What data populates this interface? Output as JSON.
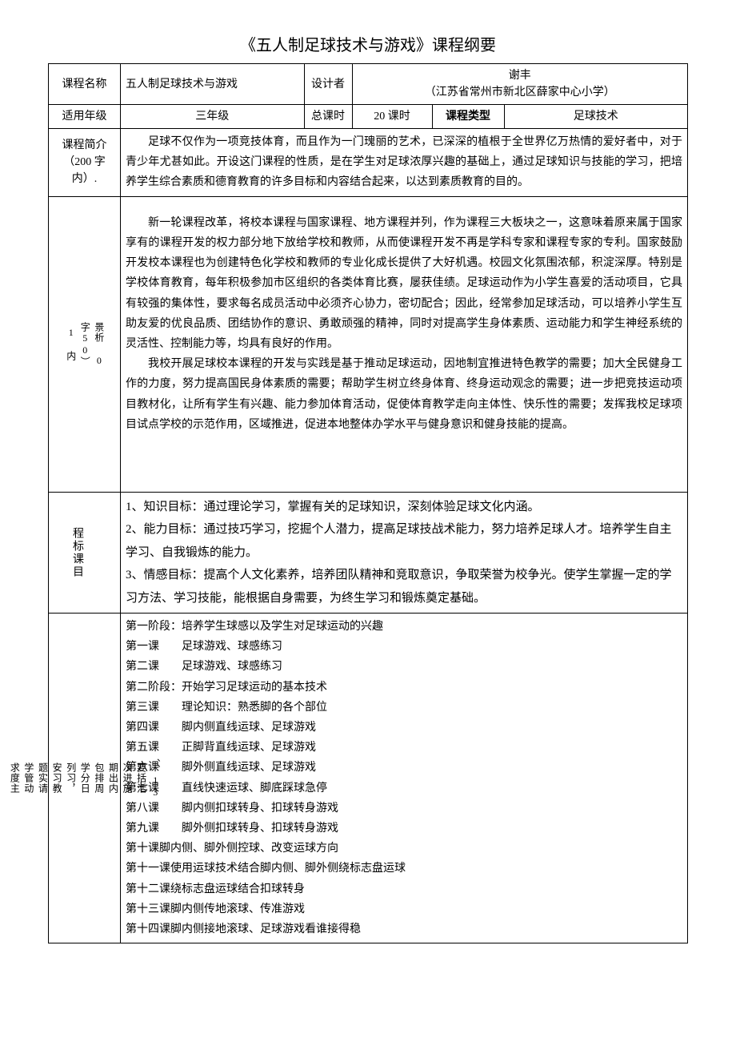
{
  "title": "《五人制足球技术与游戏》课程纲要",
  "header": {
    "course_name_label": "课程名称",
    "course_name": "五人制足球技术与游戏",
    "designer_label": "设计者",
    "designer_name": "谢丰",
    "designer_school": "（江苏省常州市新北区薛家中心小学）",
    "grade_label": "适用年级",
    "grade": "三年级",
    "total_hours_label": "总课时",
    "total_hours": "20 课时",
    "course_type_label": "课程类型",
    "course_type": "足球技术"
  },
  "intro": {
    "label": "课程简介（200 字内）.",
    "text": "足球不仅作为一项竞技体育，而且作为一门瑰丽的艺术，已深深的植根于全世界亿万热情的爱好者中，对于青少年尤甚如此。开设这门课程的性质，是在学生对足球浓厚兴趣的基础上，通过足球知识与技能的学习，把培养学生综合素质和德育教育的许多目标和内容结合起来，以达到素质教育的目的。"
  },
  "background": {
    "label_a": "1 内",
    "label_b": "字50）",
    "label_c": "景析 0",
    "p1": "新一轮课程改革，将校本课程与国家课程、地方课程并列，作为课程三大板块之一，这意味着原来属于国家享有的课程开发的权力部分地下放给学校和教师，从而使课程开发不再是学科专家和课程专家的专利。国家鼓励开发校本课程也为创建特色化学校和教师的专业化成长提供了大好机遇。校园文化氛围浓郁，积淀深厚。特别是学校体育教育，每年积极参加市区组织的各类体育比赛，屡获佳绩。足球运动作为小学生喜爱的活动项目，它具有较强的集体性，要求每名成员活动中必须齐心协力，密切配合；因此，经常参加足球活动，可以培养小学生互助友爱的优良品质、团结协作的意识、勇敢顽强的精神，同时对提高学生身体素质、运动能力和学生神经系统的灵活性、控制能力等，均具有良好的作用。",
    "p2": "我校开展足球校本课程的开发与实践是基于推动足球运动，因地制宜推进特色教学的需要；加大全民健身工作的力度，努力提高国民身体素质的需要；帮助学生树立终身体育、终身运动观念的需要；进一步把竞技运动项目教材化，让所有学生有兴趣、能力参加体育活动，促使体育教学走向主体性、快乐性的需要；发挥我校足球项目试点学校的示范作用，区域推进，促进本地整体办学水平与健身意识和健身技能的提高。"
  },
  "goals": {
    "label": "程标课目",
    "g1": "1、知识目标：通过理论学习，掌握有关的足球知识，深刻体验足球文化内涵。",
    "g2": "2、能力目标：通过技巧学习，挖掘个人潜力，提高足球技战术能力，努力培养足球人才。培养学生自主学习、自我锻炼的能力。",
    "g3": "3、情感目标：提高个人文化素养，培养团队精神和竞取意识，争取荣誉为校争光。使学生掌握一定的学习方法、学习技能，能根据自身需要，为终生学习和锻炼奠定基础。"
  },
  "schedule": {
    "labels": [
      "求度主",
      "学管动",
      "题实请",
      "安习教",
      "列习，",
      "学分日",
      "包排周",
      "期出内",
      "次进施",
      "要括活",
      "、、13"
    ],
    "lines": [
      "第一阶段：培养学生球感以及学生对足球运动的兴趣",
      "第一课　　足球游戏、球感练习",
      "第二课　　足球游戏、球感练习",
      "第二阶段：开始学习足球运动的基本技术",
      "第三课　　理论知识：熟悉脚的各个部位",
      "第四课　　脚内侧直线运球、足球游戏",
      "第五课　　正脚背直线运球、足球游戏",
      "第六课　　脚外侧直线运球、足球游戏",
      "第七课　　直线快速运球、脚底踩球急停",
      "第八课　　脚内侧扣球转身、扣球转身游戏",
      "第九课　　脚外侧扣球转身、扣球转身游戏",
      "第十课脚内侧、脚外侧控球、改变运球方向",
      "第十一课使用运球技术结合脚内侧、脚外侧绕标志盘运球",
      "第十二课绕标志盘运球结合扣球转身",
      "第十三课脚内侧传地滚球、传准游戏",
      "第十四课脚内侧接地滚球、足球游戏看谁接得稳"
    ]
  }
}
